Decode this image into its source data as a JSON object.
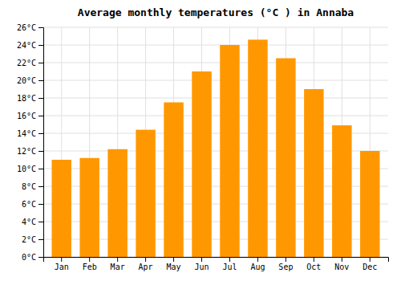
{
  "chart_data": {
    "type": "bar",
    "title": "Average monthly temperatures (°C ) in Annaba",
    "categories": [
      "Jan",
      "Feb",
      "Mar",
      "Apr",
      "May",
      "Jun",
      "Jul",
      "Aug",
      "Sep",
      "Oct",
      "Nov",
      "Dec"
    ],
    "values": [
      11.0,
      11.2,
      12.2,
      14.4,
      17.5,
      21.0,
      24.0,
      24.6,
      22.5,
      19.0,
      14.9,
      12.0
    ],
    "color": "#FF9800",
    "ylim": [
      0,
      26
    ],
    "yticks": [
      {
        "value": 0,
        "label": "0°C"
      },
      {
        "value": 2,
        "label": "2°C"
      },
      {
        "value": 4,
        "label": "4°C"
      },
      {
        "value": 6,
        "label": "6°C"
      },
      {
        "value": 8,
        "label": "8°C"
      },
      {
        "value": 10,
        "label": "10°C"
      },
      {
        "value": 12,
        "label": "12°C"
      },
      {
        "value": 14,
        "label": "14°C"
      },
      {
        "value": 16,
        "label": "16°C"
      },
      {
        "value": 18,
        "label": "18°C"
      },
      {
        "value": 20,
        "label": "20°C"
      },
      {
        "value": 22,
        "label": "22°C"
      },
      {
        "value": 24,
        "label": "24°C"
      },
      {
        "value": 26,
        "label": "26°C"
      }
    ],
    "grid": true
  }
}
